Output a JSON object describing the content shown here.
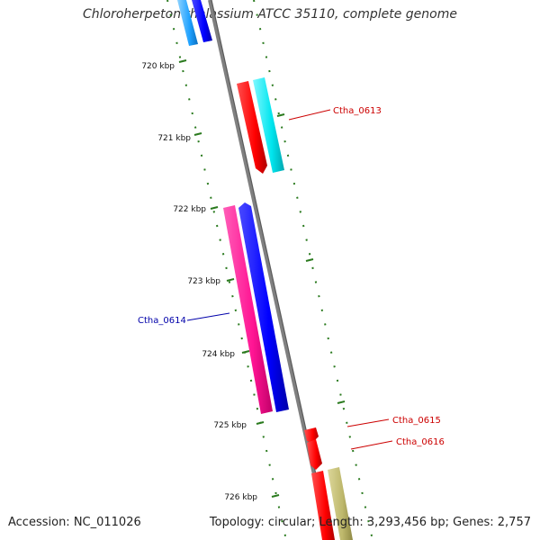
{
  "title": "Chloroherpeton thalassium ATCC 35110, complete genome",
  "accession": "Accession: NC_011026",
  "summary": "Topology: circular; Length: 3,293,456 bp; Genes: 2,757",
  "ruler_labels": [
    "720 kbp",
    "721 kbp",
    "722 kbp",
    "723 kbp",
    "724 kbp",
    "725 kbp",
    "726 kbp"
  ],
  "genes": [
    {
      "label": "Ctha_0613",
      "color": "#cc0000"
    },
    {
      "label": "Ctha_0614",
      "color": "#0000aa"
    },
    {
      "label": "Ctha_0615",
      "color": "#cc0000"
    },
    {
      "label": "Ctha_0616",
      "color": "#cc0000"
    }
  ],
  "colors": {
    "backbone": "#808080",
    "ruler": "#2a7a1e",
    "red": "#ff0000",
    "cyan": "#00e5ee",
    "blue": "#0000ff",
    "pink": "#ff1493",
    "khaki": "#bdb76b",
    "skyblue": "#1ea1ff"
  }
}
